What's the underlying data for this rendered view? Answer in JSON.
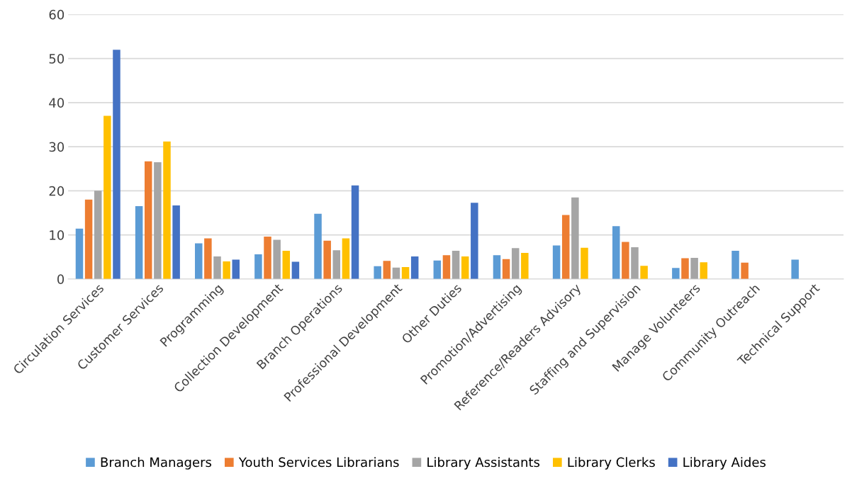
{
  "chart_data": {
    "type": "bar",
    "categories": [
      "Circulation Services",
      "Customer Services",
      "Programming",
      "Collection Development",
      "Branch Operations",
      "Professional Development",
      "Other Duties",
      "Promotion/Advertising",
      "Reference/Readers Advisory",
      "Staffing and Supervision",
      "Manage Volunteers",
      "Community Outreach",
      "Technical Support"
    ],
    "series": [
      {
        "name": "Branch Managers",
        "color": "#5b9bd5",
        "values": [
          11.4,
          16.5,
          8.1,
          5.6,
          14.8,
          2.9,
          4.2,
          5.4,
          7.6,
          12.0,
          2.5,
          6.4,
          4.4
        ]
      },
      {
        "name": "Youth Services Librarians",
        "color": "#ed7d31",
        "values": [
          18.0,
          26.7,
          9.2,
          9.6,
          8.7,
          4.1,
          5.4,
          4.5,
          14.5,
          8.4,
          4.7,
          3.7,
          null
        ]
      },
      {
        "name": "Library Assistants",
        "color": "#a5a5a5",
        "values": [
          20.0,
          26.5,
          5.1,
          8.9,
          6.5,
          2.6,
          6.4,
          7.0,
          18.5,
          7.2,
          4.8,
          null,
          null
        ]
      },
      {
        "name": "Library Clerks",
        "color": "#ffc000",
        "values": [
          37.0,
          31.2,
          4.0,
          6.4,
          9.2,
          2.7,
          5.1,
          5.9,
          7.1,
          3.0,
          3.8,
          null,
          null
        ]
      },
      {
        "name": "Library Aides",
        "color": "#4472c4",
        "values": [
          52.0,
          16.7,
          4.4,
          3.9,
          21.2,
          5.1,
          17.3,
          null,
          null,
          null,
          null,
          null,
          null
        ]
      }
    ],
    "ylim": [
      0,
      60
    ],
    "yticks": [
      0,
      10,
      20,
      30,
      40,
      50,
      60
    ],
    "grid": "y",
    "legend": "bottom"
  }
}
